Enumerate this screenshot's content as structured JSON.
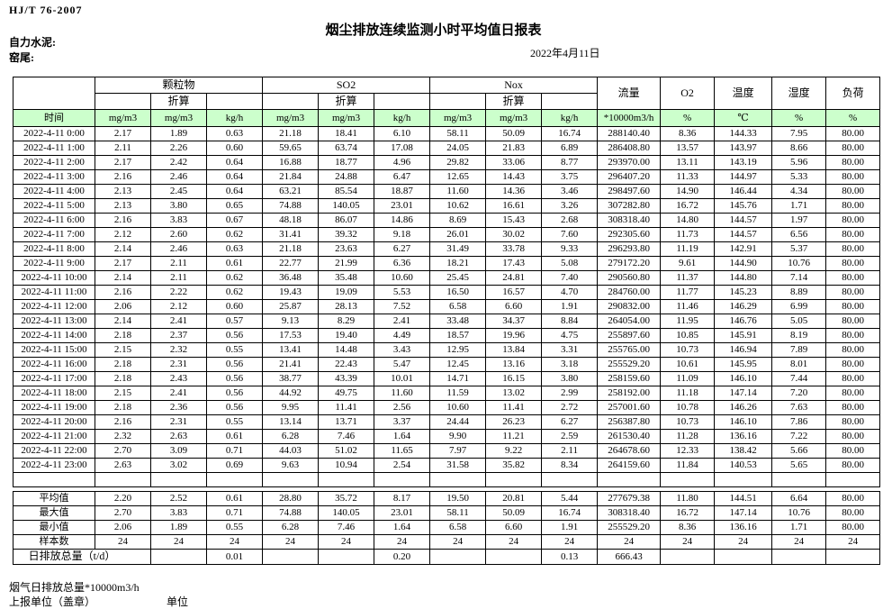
{
  "page": {
    "standard": "HJ/T 76-2007",
    "title": "烟尘排放连续监测小时平均值日报表",
    "company": "自力水泥:",
    "station": "窑尾:",
    "date": "2022年4月11日"
  },
  "table": {
    "time_label": "时间",
    "converted_label": "折算",
    "groups": {
      "pm": "颗粒物",
      "so2": "SO2",
      "nox": "Nox",
      "flow": "流量",
      "o2": "O2",
      "temp": "温度",
      "humidity": "湿度",
      "load": "负荷"
    },
    "units": [
      "mg/m3",
      "mg/m3",
      "kg/h",
      "mg/m3",
      "mg/m3",
      "kg/h",
      "mg/m3",
      "mg/m3",
      "kg/h",
      "*10000m3/h",
      "%",
      "℃",
      "%",
      "%"
    ],
    "rows": [
      {
        "time": "2022-4-11 0:00",
        "v": [
          "2.17",
          "1.89",
          "0.63",
          "21.18",
          "18.41",
          "6.10",
          "58.11",
          "50.09",
          "16.74",
          "288140.40",
          "8.36",
          "144.33",
          "7.95",
          "80.00"
        ]
      },
      {
        "time": "2022-4-11 1:00",
        "v": [
          "2.11",
          "2.26",
          "0.60",
          "59.65",
          "63.74",
          "17.08",
          "24.05",
          "21.83",
          "6.89",
          "286408.80",
          "13.57",
          "143.97",
          "8.66",
          "80.00"
        ]
      },
      {
        "time": "2022-4-11 2:00",
        "v": [
          "2.17",
          "2.42",
          "0.64",
          "16.88",
          "18.77",
          "4.96",
          "29.82",
          "33.06",
          "8.77",
          "293970.00",
          "13.11",
          "143.19",
          "5.96",
          "80.00"
        ]
      },
      {
        "time": "2022-4-11 3:00",
        "v": [
          "2.16",
          "2.46",
          "0.64",
          "21.84",
          "24.88",
          "6.47",
          "12.65",
          "14.43",
          "3.75",
          "296407.20",
          "11.33",
          "144.97",
          "5.33",
          "80.00"
        ]
      },
      {
        "time": "2022-4-11 4:00",
        "v": [
          "2.13",
          "2.45",
          "0.64",
          "63.21",
          "85.54",
          "18.87",
          "11.60",
          "14.36",
          "3.46",
          "298497.60",
          "14.90",
          "146.44",
          "4.34",
          "80.00"
        ]
      },
      {
        "time": "2022-4-11 5:00",
        "v": [
          "2.13",
          "3.80",
          "0.65",
          "74.88",
          "140.05",
          "23.01",
          "10.62",
          "16.61",
          "3.26",
          "307282.80",
          "16.72",
          "145.76",
          "1.71",
          "80.00"
        ]
      },
      {
        "time": "2022-4-11 6:00",
        "v": [
          "2.16",
          "3.83",
          "0.67",
          "48.18",
          "86.07",
          "14.86",
          "8.69",
          "15.43",
          "2.68",
          "308318.40",
          "14.80",
          "144.57",
          "1.97",
          "80.00"
        ]
      },
      {
        "time": "2022-4-11 7:00",
        "v": [
          "2.12",
          "2.60",
          "0.62",
          "31.41",
          "39.32",
          "9.18",
          "26.01",
          "30.02",
          "7.60",
          "292305.60",
          "11.73",
          "144.57",
          "6.56",
          "80.00"
        ]
      },
      {
        "time": "2022-4-11 8:00",
        "v": [
          "2.14",
          "2.46",
          "0.63",
          "21.18",
          "23.63",
          "6.27",
          "31.49",
          "33.78",
          "9.33",
          "296293.80",
          "11.19",
          "142.91",
          "5.37",
          "80.00"
        ]
      },
      {
        "time": "2022-4-11 9:00",
        "v": [
          "2.17",
          "2.11",
          "0.61",
          "22.77",
          "21.99",
          "6.36",
          "18.21",
          "17.43",
          "5.08",
          "279172.20",
          "9.61",
          "144.90",
          "10.76",
          "80.00"
        ]
      },
      {
        "time": "2022-4-11 10:00",
        "v": [
          "2.14",
          "2.11",
          "0.62",
          "36.48",
          "35.48",
          "10.60",
          "25.45",
          "24.81",
          "7.40",
          "290560.80",
          "11.37",
          "144.80",
          "7.14",
          "80.00"
        ]
      },
      {
        "time": "2022-4-11 11:00",
        "v": [
          "2.16",
          "2.22",
          "0.62",
          "19.43",
          "19.09",
          "5.53",
          "16.50",
          "16.57",
          "4.70",
          "284760.00",
          "11.77",
          "145.23",
          "8.89",
          "80.00"
        ]
      },
      {
        "time": "2022-4-11 12:00",
        "v": [
          "2.06",
          "2.12",
          "0.60",
          "25.87",
          "28.13",
          "7.52",
          "6.58",
          "6.60",
          "1.91",
          "290832.00",
          "11.46",
          "146.29",
          "6.99",
          "80.00"
        ]
      },
      {
        "time": "2022-4-11 13:00",
        "v": [
          "2.14",
          "2.41",
          "0.57",
          "9.13",
          "8.29",
          "2.41",
          "33.48",
          "34.37",
          "8.84",
          "264054.00",
          "11.95",
          "146.76",
          "5.05",
          "80.00"
        ]
      },
      {
        "time": "2022-4-11 14:00",
        "v": [
          "2.18",
          "2.37",
          "0.56",
          "17.53",
          "19.40",
          "4.49",
          "18.57",
          "19.96",
          "4.75",
          "255897.60",
          "10.85",
          "145.91",
          "8.19",
          "80.00"
        ]
      },
      {
        "time": "2022-4-11 15:00",
        "v": [
          "2.15",
          "2.32",
          "0.55",
          "13.41",
          "14.48",
          "3.43",
          "12.95",
          "13.84",
          "3.31",
          "255765.00",
          "10.73",
          "146.94",
          "7.89",
          "80.00"
        ]
      },
      {
        "time": "2022-4-11 16:00",
        "v": [
          "2.18",
          "2.31",
          "0.56",
          "21.41",
          "22.43",
          "5.47",
          "12.45",
          "13.16",
          "3.18",
          "255529.20",
          "10.61",
          "145.95",
          "8.01",
          "80.00"
        ]
      },
      {
        "time": "2022-4-11 17:00",
        "v": [
          "2.18",
          "2.43",
          "0.56",
          "38.77",
          "43.39",
          "10.01",
          "14.71",
          "16.15",
          "3.80",
          "258159.60",
          "11.09",
          "146.10",
          "7.44",
          "80.00"
        ]
      },
      {
        "time": "2022-4-11 18:00",
        "v": [
          "2.15",
          "2.41",
          "0.56",
          "44.92",
          "49.75",
          "11.60",
          "11.59",
          "13.02",
          "2.99",
          "258192.00",
          "11.18",
          "147.14",
          "7.20",
          "80.00"
        ]
      },
      {
        "time": "2022-4-11 19:00",
        "v": [
          "2.18",
          "2.36",
          "0.56",
          "9.95",
          "11.41",
          "2.56",
          "10.60",
          "11.41",
          "2.72",
          "257001.60",
          "10.78",
          "146.26",
          "7.63",
          "80.00"
        ]
      },
      {
        "time": "2022-4-11 20:00",
        "v": [
          "2.16",
          "2.31",
          "0.55",
          "13.14",
          "13.71",
          "3.37",
          "24.44",
          "26.23",
          "6.27",
          "256387.80",
          "10.73",
          "146.10",
          "7.86",
          "80.00"
        ]
      },
      {
        "time": "2022-4-11 21:00",
        "v": [
          "2.32",
          "2.63",
          "0.61",
          "6.28",
          "7.46",
          "1.64",
          "9.90",
          "11.21",
          "2.59",
          "261530.40",
          "11.28",
          "136.16",
          "7.22",
          "80.00"
        ]
      },
      {
        "time": "2022-4-11 22:00",
        "v": [
          "2.70",
          "3.09",
          "0.71",
          "44.03",
          "51.02",
          "11.65",
          "7.97",
          "9.22",
          "2.11",
          "264678.60",
          "12.33",
          "138.42",
          "5.66",
          "80.00"
        ]
      },
      {
        "time": "2022-4-11 23:00",
        "v": [
          "2.63",
          "3.02",
          "0.69",
          "9.63",
          "10.94",
          "2.54",
          "31.58",
          "35.82",
          "8.34",
          "264159.60",
          "11.84",
          "140.53",
          "5.65",
          "80.00"
        ]
      }
    ],
    "summary": [
      {
        "label": "平均值",
        "v": [
          "2.20",
          "2.52",
          "0.61",
          "28.80",
          "35.72",
          "8.17",
          "19.50",
          "20.81",
          "5.44",
          "277679.38",
          "11.80",
          "144.51",
          "6.64",
          "80.00"
        ]
      },
      {
        "label": "最大值",
        "v": [
          "2.70",
          "3.83",
          "0.71",
          "74.88",
          "140.05",
          "23.01",
          "58.11",
          "50.09",
          "16.74",
          "308318.40",
          "16.72",
          "147.14",
          "10.76",
          "80.00"
        ]
      },
      {
        "label": "最小值",
        "v": [
          "2.06",
          "1.89",
          "0.55",
          "6.28",
          "7.46",
          "1.64",
          "6.58",
          "6.60",
          "1.91",
          "255529.20",
          "8.36",
          "136.16",
          "1.71",
          "80.00"
        ]
      },
      {
        "label": "样本数",
        "v": [
          "24",
          "24",
          "24",
          "24",
          "24",
          "24",
          "24",
          "24",
          "24",
          "24",
          "24",
          "24",
          "24",
          "24"
        ]
      }
    ],
    "daily_total": {
      "label": "日排放总量（t/d）",
      "v": [
        "",
        "0.01",
        "",
        "",
        "0.20",
        "",
        "",
        "0.13",
        "666.43",
        "",
        "",
        "",
        ""
      ]
    }
  },
  "footer": {
    "flue_total": "烟气日排放总量*10000m3/h",
    "report_unit": "上报单位（盖章）",
    "unit": "单位"
  },
  "colors": {
    "header_green": "#ccffcc",
    "border": "#000000"
  }
}
